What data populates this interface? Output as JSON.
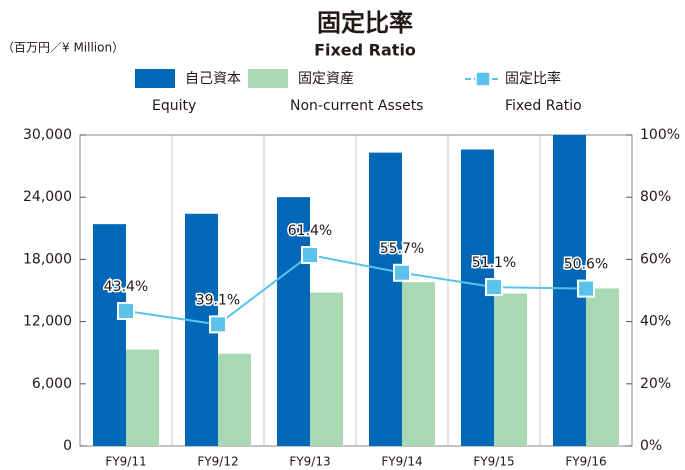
{
  "chart_data": {
    "type": "bar_line",
    "title": "固定比率",
    "subtitle": "Fixed Ratio",
    "unit_label": "（百万円／¥ Million）",
    "categories": [
      "FY9/11",
      "FY9/12",
      "FY9/13",
      "FY9/14",
      "FY9/15",
      "FY9/16"
    ],
    "series": [
      {
        "name": "自己資本",
        "name_en": "Equity",
        "color": "#0068b7",
        "type": "bar",
        "values": [
          21400,
          22400,
          24000,
          28300,
          28600,
          30000
        ]
      },
      {
        "name": "固定資産",
        "name_en": "Non-current Assets",
        "color": "#a9d9b2",
        "type": "bar",
        "values": [
          9300,
          8900,
          14800,
          15800,
          14700,
          15200
        ]
      },
      {
        "name": "固定比率",
        "name_en": "Fixed Ratio",
        "color": "#5bc2ec",
        "type": "line",
        "axis": "y2",
        "values": [
          43.4,
          39.1,
          61.4,
          55.7,
          51.1,
          50.6
        ],
        "value_labels": [
          "43.4%",
          "39.1%",
          "61.4%",
          "55.7%",
          "51.1%",
          "50.6%"
        ]
      }
    ],
    "ylim": [
      0,
      30000
    ],
    "yticks": [
      0,
      {
        "value": 6000,
        "label": "6,000"
      },
      {
        "value": 12000,
        "label": "12,000"
      },
      {
        "value": 18000,
        "label": "18,000"
      },
      {
        "value": 24000,
        "label": "24,000"
      },
      {
        "value": 30000,
        "label": "30,000"
      }
    ],
    "y2lim": [
      0,
      100
    ],
    "y2ticks": [
      {
        "value": 0,
        "label": "0%"
      },
      {
        "value": 20,
        "label": "20%"
      },
      {
        "value": 40,
        "label": "40%"
      },
      {
        "value": 60,
        "label": "60%"
      },
      {
        "value": 80,
        "label": "80%"
      },
      {
        "value": 100,
        "label": "100%"
      }
    ],
    "grid": "vertical"
  }
}
